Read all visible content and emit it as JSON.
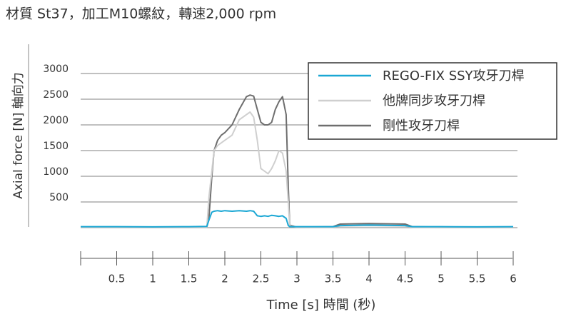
{
  "chart_data": {
    "type": "line",
    "title": "材質 St37，加工M10螺紋，轉速2,000 rpm",
    "y_label": "Axial force [N] 軸向力",
    "x_label": "Time [s]   時間 (秒)",
    "x": [
      0,
      0.5,
      1,
      1.5,
      1.75,
      1.78,
      1.82,
      1.85,
      1.9,
      1.95,
      2.0,
      2.1,
      2.2,
      2.3,
      2.35,
      2.4,
      2.45,
      2.5,
      2.55,
      2.6,
      2.65,
      2.7,
      2.75,
      2.8,
      2.85,
      2.88,
      2.9,
      3.0,
      3.5,
      3.6,
      4.0,
      4.5,
      4.6,
      5,
      5.5,
      6
    ],
    "series": [
      {
        "name": "剛性攻牙刀桿",
        "color": "#6e6e6e",
        "values": [
          10,
          10,
          10,
          10,
          10,
          200,
          1000,
          1500,
          1700,
          1800,
          1850,
          2000,
          2300,
          2550,
          2580,
          2560,
          2300,
          2050,
          2000,
          2000,
          2050,
          2300,
          2450,
          2550,
          2200,
          800,
          50,
          10,
          20,
          70,
          80,
          70,
          20,
          10,
          10,
          10
        ]
      },
      {
        "name": "他牌同步攻牙刀桿",
        "color": "#cfcfcf",
        "values": [
          10,
          10,
          10,
          10,
          10,
          600,
          1100,
          1500,
          1600,
          1650,
          1700,
          1800,
          2100,
          2200,
          2250,
          2150,
          1700,
          1150,
          1100,
          1050,
          1150,
          1300,
          1500,
          1450,
          1100,
          500,
          30,
          10,
          10,
          30,
          40,
          30,
          10,
          10,
          10,
          10
        ]
      },
      {
        "name": "REGO-FIX SSY攻牙刀桿",
        "color": "#1aa7d4",
        "values": [
          20,
          20,
          15,
          20,
          25,
          150,
          300,
          320,
          330,
          320,
          330,
          320,
          330,
          320,
          330,
          320,
          230,
          220,
          230,
          220,
          240,
          230,
          220,
          230,
          180,
          40,
          20,
          20,
          20,
          40,
          50,
          40,
          20,
          20,
          15,
          20
        ]
      }
    ],
    "legend_order": [
      2,
      1,
      0
    ],
    "xlim": [
      0,
      6
    ],
    "xticks": [
      0.5,
      1,
      1.5,
      2,
      2.5,
      3,
      3.5,
      4,
      4.5,
      5,
      5.5,
      6
    ],
    "ylim": [
      0,
      3000
    ],
    "yticks": [
      500,
      1000,
      1500,
      2000,
      2500,
      3000
    ],
    "grid": true,
    "legend": "upper right"
  }
}
